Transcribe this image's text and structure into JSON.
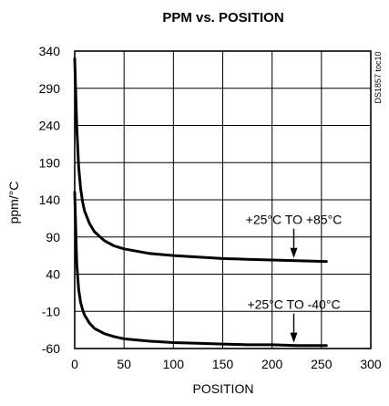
{
  "chart_data": {
    "type": "line",
    "title": "PPM vs. POSITION",
    "xlabel": "POSITION",
    "ylabel": "ppm/°C",
    "xlim": [
      0,
      300
    ],
    "ylim": [
      -60,
      340
    ],
    "x_ticks": [
      0,
      50,
      100,
      150,
      200,
      250,
      300
    ],
    "y_ticks": [
      340,
      290,
      240,
      190,
      140,
      90,
      40,
      -10,
      -60
    ],
    "grid": true,
    "series": [
      {
        "label": "+25°C TO +85°C",
        "x": [
          0,
          2,
          4,
          6,
          8,
          10,
          15,
          20,
          30,
          40,
          50,
          75,
          100,
          125,
          150,
          175,
          200,
          225,
          255
        ],
        "y": [
          330,
          240,
          185,
          155,
          137,
          125,
          108,
          97,
          85,
          78,
          74,
          68,
          65,
          63,
          61,
          60,
          59,
          58,
          57
        ]
      },
      {
        "label": "+25°C TO -40°C",
        "x": [
          0,
          2,
          4,
          6,
          8,
          10,
          15,
          20,
          30,
          40,
          50,
          75,
          100,
          125,
          150,
          175,
          200,
          225,
          255
        ],
        "y": [
          150,
          55,
          20,
          2,
          -8,
          -15,
          -26,
          -33,
          -40,
          -44,
          -47,
          -50,
          -52,
          -53,
          -54,
          -55,
          -55,
          -56,
          -56
        ]
      }
    ],
    "annotations": [
      {
        "text": "+25°C TO +85°C",
        "series": 0,
        "arrow_x": 222
      },
      {
        "text": "+25°C TO -40°C",
        "series": 1,
        "arrow_x": 222
      }
    ],
    "side_label": "DS1857 toc10"
  }
}
